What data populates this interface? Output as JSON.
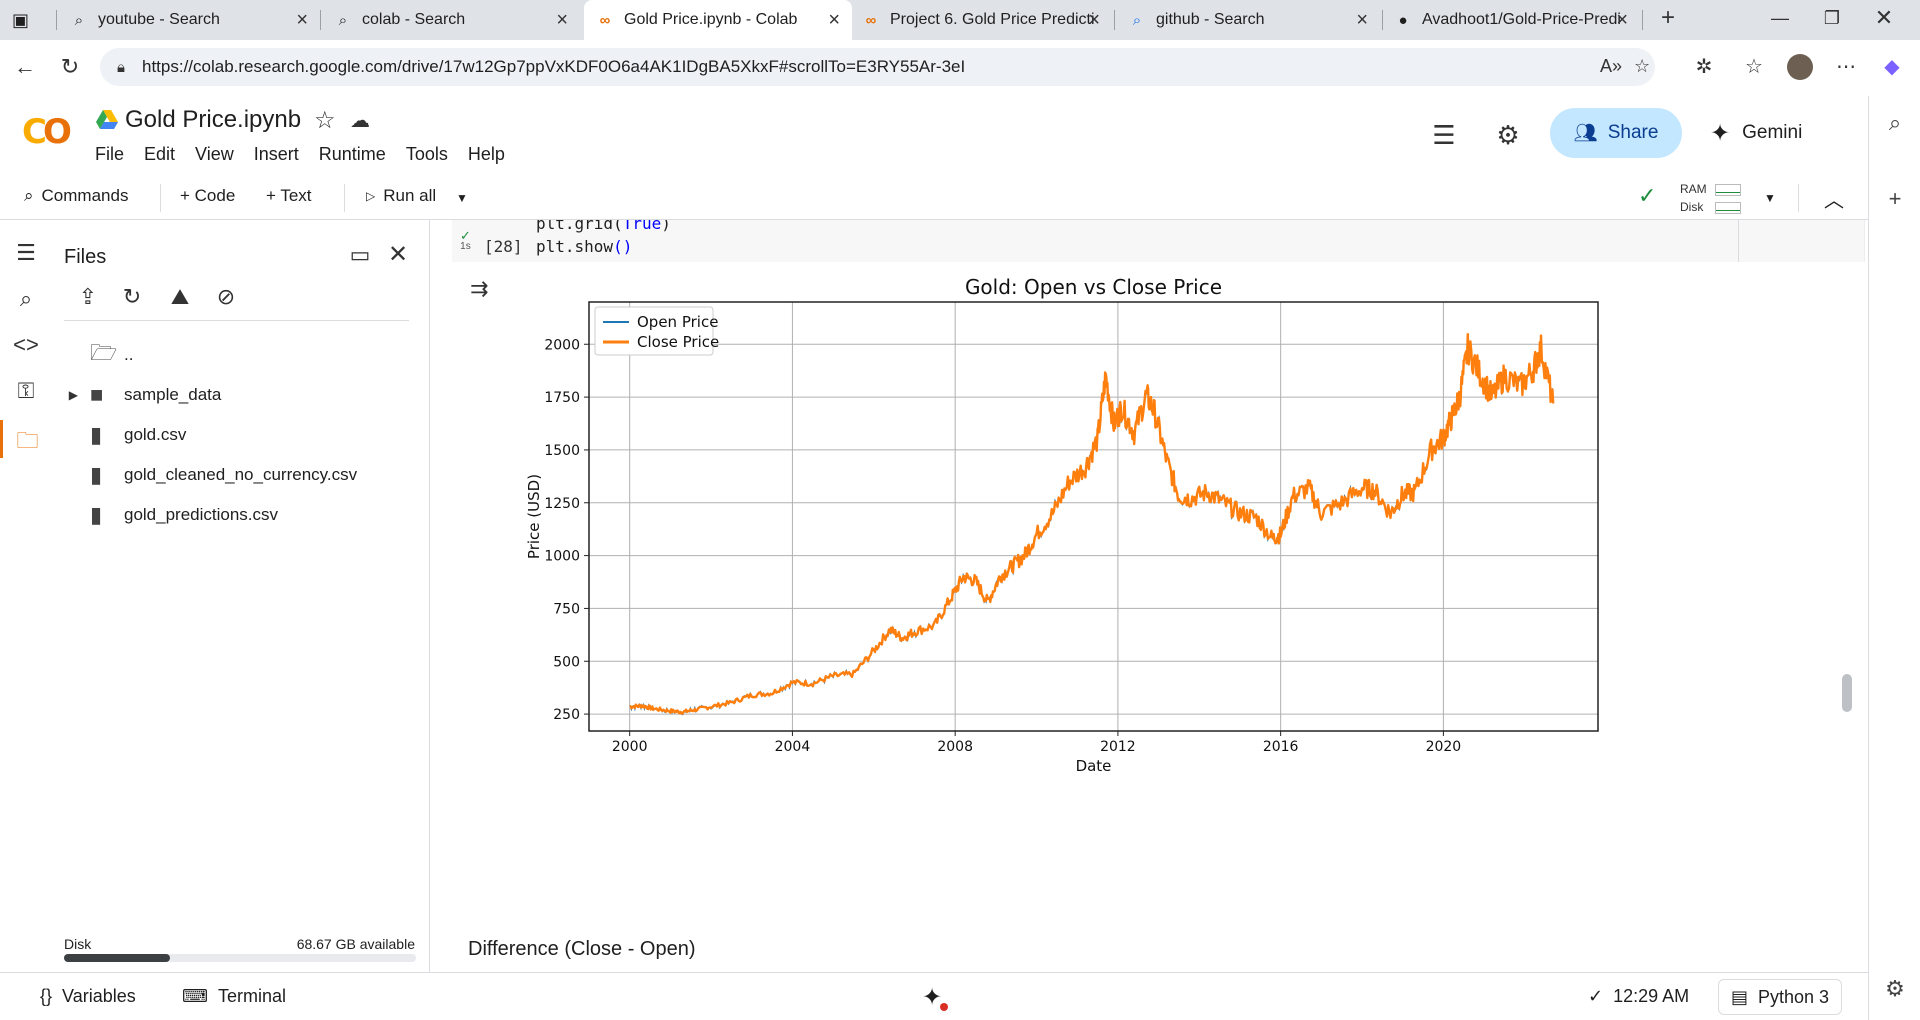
{
  "browser": {
    "tabs": [
      {
        "title": "youtube - Search",
        "icon": "search-icon"
      },
      {
        "title": "colab - Search",
        "icon": "search-icon"
      },
      {
        "title": "Gold Price.ipynb - Colab",
        "icon": "colab-icon",
        "active": true
      },
      {
        "title": "Project 6. Gold Price Predicti",
        "icon": "colab-icon"
      },
      {
        "title": "github - Search",
        "icon": "search-icon"
      },
      {
        "title": "Avadhoot1/Gold-Price-Predi",
        "icon": "github-icon"
      }
    ],
    "url": "https://colab.research.google.com/drive/17w12Gp7ppVxKDF0O6a4AK1IDgBA5XkxF#scrollTo=E3RY55Ar-3eI"
  },
  "header": {
    "notebook_title": "Gold Price.ipynb",
    "menu": [
      "File",
      "Edit",
      "View",
      "Insert",
      "Runtime",
      "Tools",
      "Help"
    ],
    "share_label": "Share",
    "gemini_label": "Gemini"
  },
  "toolbar": {
    "commands_label": "Commands",
    "code_label": "+ Code",
    "text_label": "+ Text",
    "run_all_label": "Run all",
    "ram_label": "RAM",
    "disk_label": "Disk"
  },
  "files": {
    "title": "Files",
    "parent_label": "..",
    "items": [
      {
        "name": "sample_data",
        "type": "folder"
      },
      {
        "name": "gold.csv",
        "type": "file"
      },
      {
        "name": "gold_cleaned_no_currency.csv",
        "type": "file"
      },
      {
        "name": "gold_predictions.csv",
        "type": "file"
      }
    ],
    "disk_label": "Disk",
    "disk_available": "68.67 GB available",
    "disk_used_fraction": 0.3
  },
  "cell": {
    "exec_count": "[28]",
    "run_time": "1s",
    "code_prev": "plt.grid(True)",
    "code_prev_fn": "plt.grid(",
    "code_prev_arg": "True",
    "code_prev_close": ")",
    "code_fn": "plt.show",
    "code_parens": "()"
  },
  "chart_data": {
    "type": "line",
    "title": "Gold: Open vs Close Price",
    "xlabel": "Date",
    "ylabel": "Price (USD)",
    "xlim": [
      1999,
      2023.8
    ],
    "ylim": [
      170,
      2200
    ],
    "x_ticks": [
      "2000",
      "2004",
      "2008",
      "2012",
      "2016",
      "2020"
    ],
    "y_ticks": [
      "250",
      "500",
      "750",
      "1000",
      "1250",
      "1500",
      "1750",
      "2000"
    ],
    "grid": true,
    "legend_position": "top-left",
    "series": [
      {
        "name": "Open Price",
        "color": "#1f77b4"
      },
      {
        "name": "Close Price",
        "color": "#ff7f0e"
      }
    ],
    "x": [
      2000.0,
      2000.3,
      2000.6,
      2001.0,
      2001.3,
      2001.6,
      2002.0,
      2002.5,
      2003.0,
      2003.5,
      2004.0,
      2004.5,
      2005.0,
      2005.5,
      2006.0,
      2006.4,
      2006.7,
      2007.0,
      2007.5,
      2007.9,
      2008.2,
      2008.5,
      2008.8,
      2009.1,
      2009.4,
      2009.7,
      2010.0,
      2010.4,
      2010.8,
      2011.2,
      2011.5,
      2011.7,
      2011.9,
      2012.1,
      2012.4,
      2012.7,
      2012.9,
      2013.2,
      2013.5,
      2013.8,
      2014.2,
      2014.6,
      2015.0,
      2015.4,
      2015.8,
      2016.0,
      2016.3,
      2016.7,
      2017.0,
      2017.5,
      2018.0,
      2018.3,
      2018.7,
      2019.0,
      2019.3,
      2019.7,
      2020.0,
      2020.2,
      2020.4,
      2020.6,
      2020.9,
      2021.2,
      2021.5,
      2021.9,
      2022.2,
      2022.4,
      2022.7
    ],
    "values": [
      285,
      290,
      275,
      265,
      260,
      270,
      285,
      305,
      340,
      350,
      400,
      395,
      430,
      440,
      550,
      650,
      610,
      640,
      670,
      800,
      900,
      880,
      780,
      900,
      950,
      1000,
      1100,
      1200,
      1350,
      1420,
      1550,
      1850,
      1620,
      1700,
      1580,
      1760,
      1680,
      1450,
      1280,
      1270,
      1300,
      1250,
      1200,
      1180,
      1080,
      1100,
      1280,
      1320,
      1200,
      1250,
      1320,
      1310,
      1200,
      1290,
      1300,
      1500,
      1560,
      1650,
      1750,
      1980,
      1860,
      1750,
      1850,
      1800,
      1880,
      1980,
      1720
    ]
  },
  "next_heading": "Difference (Close - Open)",
  "status": {
    "variables_label": "Variables",
    "terminal_label": "Terminal",
    "time_label": "12:29 AM",
    "runtime_label": "Python 3"
  }
}
